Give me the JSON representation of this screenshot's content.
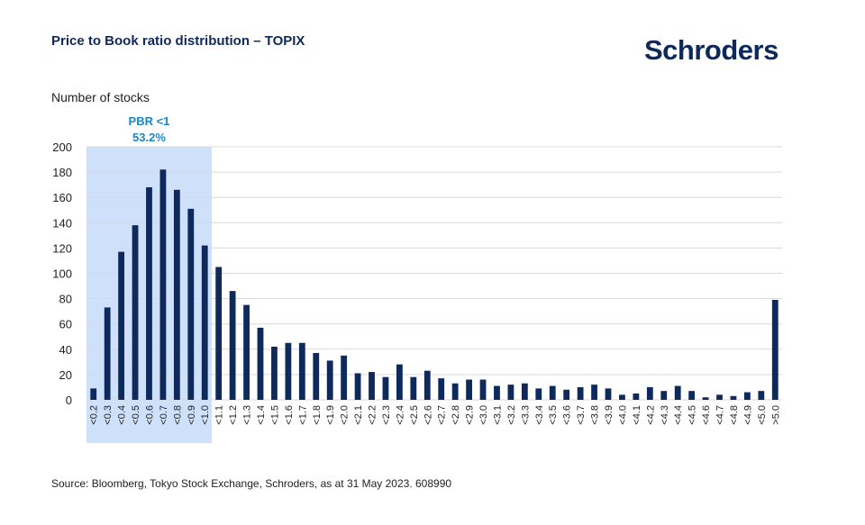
{
  "header": {
    "title": "Price to Book ratio distribution – TOPIX",
    "logo_text": "Schroders"
  },
  "footer": {
    "source": "Source: Bloomberg, Tokyo Stock Exchange, Schroders, as at 31 May 2023. 608990"
  },
  "colors": {
    "bar": "#0e2a5c",
    "highlight_fill": "#cfe0fa",
    "annotation": "#1f86c4",
    "grid": "#d9d9d9"
  },
  "chart_data": {
    "type": "bar",
    "title": "Price to Book ratio distribution – TOPIX",
    "ylabel": "Number of stocks",
    "xlabel": "",
    "ylim": [
      0,
      200
    ],
    "yticks": [
      0,
      20,
      40,
      60,
      80,
      100,
      120,
      140,
      160,
      180,
      200
    ],
    "grid": true,
    "categories": [
      "<0.2",
      "<0.3",
      "<0.4",
      "<0.5",
      "<0.6",
      "<0.7",
      "<0.8",
      "<0.9",
      "<1.0",
      "<1.1",
      "<1.2",
      "<1.3",
      "<1.4",
      "<1.5",
      "<1.6",
      "<1.7",
      "<1.8",
      "<1.9",
      "<2.0",
      "<2.1",
      "<2.2",
      "<2.3",
      "<2.4",
      "<2.5",
      "<2.6",
      "<2.7",
      "<2.8",
      "<2.9",
      "<3.0",
      "<3.1",
      "<3.2",
      "<3.3",
      "<3.4",
      "<3.5",
      "<3.6",
      "<3.7",
      "<3.8",
      "<3.9",
      "<4.0",
      "<4.1",
      "<4.2",
      "<4.3",
      "<4.4",
      "<4.5",
      "<4.6",
      "<4.7",
      "<4.8",
      "<4.9",
      "<5.0",
      ">5.0"
    ],
    "values": [
      9,
      73,
      117,
      138,
      168,
      182,
      166,
      151,
      122,
      105,
      86,
      75,
      57,
      42,
      45,
      45,
      37,
      31,
      35,
      21,
      22,
      18,
      28,
      18,
      23,
      17,
      13,
      16,
      16,
      11,
      12,
      13,
      9,
      11,
      8,
      10,
      12,
      9,
      4,
      5,
      10,
      7,
      11,
      7,
      2,
      4,
      3,
      6,
      7,
      79
    ],
    "highlight": {
      "from_category": "<0.2",
      "to_category": "<1.0",
      "label": "PBR <1",
      "value_label": "53.2%"
    }
  }
}
